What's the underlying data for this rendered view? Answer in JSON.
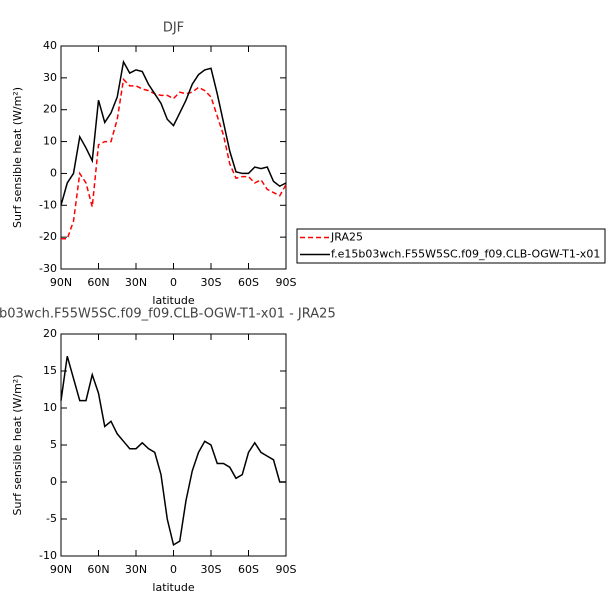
{
  "chart_data": [
    {
      "type": "line",
      "title": "DJF",
      "xlabel": "latitude",
      "ylabel": "Surf sensible heat (W/m²)",
      "x": [
        90,
        85,
        80,
        75,
        70,
        65,
        60,
        55,
        50,
        45,
        40,
        35,
        30,
        25,
        20,
        15,
        10,
        5,
        0,
        -5,
        -10,
        -15,
        -20,
        -25,
        -30,
        -35,
        -40,
        -45,
        -50,
        -55,
        -60,
        -65,
        -70,
        -75,
        -80,
        -85,
        -90
      ],
      "series": [
        {
          "name": "JRA25",
          "color": "#ff0000",
          "line_style": "dashed",
          "values": [
            -20.5,
            -20.5,
            -15,
            0,
            -3,
            -10.5,
            9,
            10,
            10,
            17,
            29.5,
            27.5,
            27.5,
            26.5,
            26,
            25,
            24.5,
            24.5,
            23.5,
            25.5,
            25,
            25.5,
            27,
            26,
            24,
            18,
            12,
            3,
            -1.5,
            -1,
            -1,
            -3,
            -2,
            -5,
            -6,
            -7,
            -3.5
          ]
        },
        {
          "name": "f.e15b03wch.F55W5SC.f09_f09.CLB-OGW-T1-x01",
          "color": "#000000",
          "line_style": "solid",
          "values": [
            -10,
            -3,
            0,
            11.5,
            8,
            4,
            23,
            16,
            19,
            24,
            35,
            31.5,
            32.5,
            32,
            28,
            25,
            22,
            17,
            15,
            19,
            23,
            28,
            31,
            32.5,
            33,
            25,
            16,
            7,
            0.5,
            0,
            0,
            2,
            1.5,
            2,
            -2.5,
            -4,
            -3
          ]
        }
      ],
      "xlim": [
        90,
        -90
      ],
      "xticks": [
        {
          "value": 90,
          "label": "90N"
        },
        {
          "value": 60,
          "label": "60N"
        },
        {
          "value": 30,
          "label": "30N"
        },
        0,
        {
          "value": -30,
          "label": "30S"
        },
        {
          "value": -60,
          "label": "60S"
        },
        {
          "value": -90,
          "label": "90S"
        }
      ],
      "ylim": [
        -30,
        40
      ],
      "yticks": [
        -30,
        -20,
        -10,
        0,
        10,
        20,
        30,
        40
      ],
      "legend": "right"
    },
    {
      "type": "line",
      "title": "b03wch.F55W5SC.f09_f09.CLB-OGW-T1-x01 - JRA25",
      "xlabel": "latitude",
      "ylabel": "Surf sensible heat (W/m²)",
      "x": [
        90,
        85,
        80,
        75,
        70,
        65,
        60,
        55,
        50,
        45,
        40,
        35,
        30,
        25,
        20,
        15,
        10,
        5,
        0,
        -5,
        -10,
        -15,
        -20,
        -25,
        -30,
        -35,
        -40,
        -45,
        -50,
        -55,
        -60,
        -65,
        -70,
        -75,
        -80,
        -85,
        -90
      ],
      "series": [
        {
          "color": "#000000",
          "line_style": "solid",
          "values": [
            11,
            17,
            14,
            11,
            11,
            14.5,
            12,
            7.5,
            8.2,
            6.5,
            5.5,
            4.5,
            4.5,
            5.3,
            4.5,
            4,
            1,
            -5,
            -8.5,
            -8,
            -2.5,
            1.5,
            4,
            5.5,
            5,
            2.5,
            2.5,
            2,
            0.5,
            1,
            4,
            5.3,
            4,
            3.5,
            3,
            0,
            0
          ]
        }
      ],
      "xlim": [
        90,
        -90
      ],
      "xticks": [
        {
          "value": 90,
          "label": "90N"
        },
        {
          "value": 60,
          "label": "60N"
        },
        {
          "value": 30,
          "label": "30N"
        },
        0,
        {
          "value": -30,
          "label": "30S"
        },
        {
          "value": -60,
          "label": "60S"
        },
        {
          "value": -90,
          "label": "90S"
        }
      ],
      "ylim": [
        -10,
        20
      ],
      "yticks": [
        -10,
        -5,
        0,
        5,
        10,
        15,
        20
      ]
    }
  ]
}
